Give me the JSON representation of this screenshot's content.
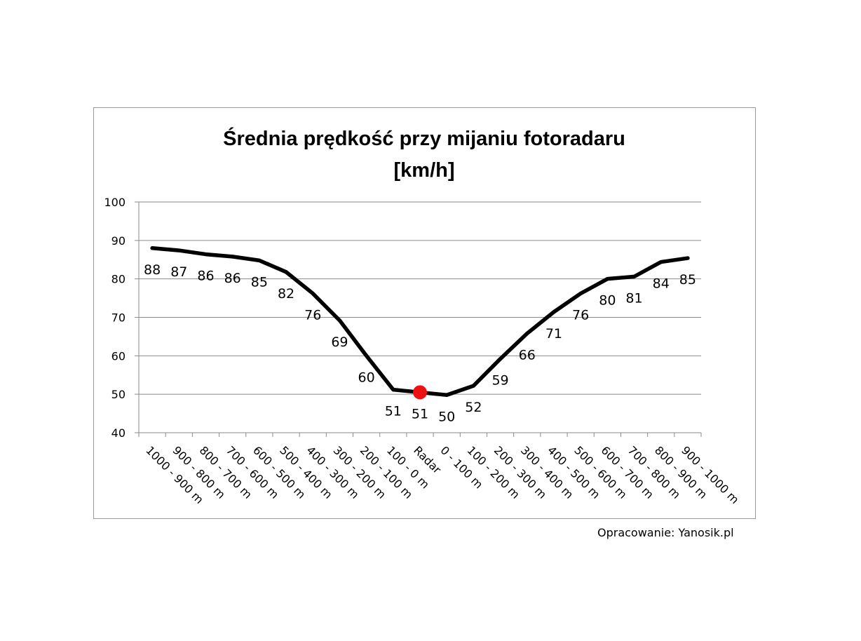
{
  "chart_data": {
    "type": "line",
    "title": "Średnia prędkość przy mijaniu fotoradaru",
    "subtitle": "[km/h]",
    "categories": [
      "1000 - 900 m",
      "900 - 800 m",
      "800 - 700 m",
      "700 - 600 m",
      "600 - 500 m",
      "500 - 400 m",
      "400 - 300 m",
      "300 - 200 m",
      "200 - 100 m",
      "100 - 0 m",
      "Radar",
      "0 - 100 m",
      "100 - 200 m",
      "200 - 300 m",
      "300 - 400 m",
      "400 - 500 m",
      "500 - 600 m",
      "600 - 700 m",
      "700 - 800 m",
      "800 - 900 m",
      "900 - 1000 m"
    ],
    "values": [
      88,
      87.4,
      86.4,
      85.8,
      84.8,
      81.8,
      76.2,
      69.2,
      60,
      51.2,
      50.5,
      49.8,
      52.2,
      59.2,
      65.8,
      71.4,
      76.2,
      80,
      80.6,
      84.4,
      85.4
    ],
    "data_labels": [
      "88",
      "87",
      "86",
      "86",
      "85",
      "82",
      "76",
      "69",
      "60",
      "51",
      "51",
      "50",
      "52",
      "59",
      "66",
      "71",
      "76",
      "80",
      "81",
      "84",
      "85"
    ],
    "highlight_index": 10,
    "highlight_color": "#ee1111",
    "line_color": "#000000",
    "ylim": [
      40,
      100
    ],
    "yticks": [
      40,
      50,
      60,
      70,
      80,
      90,
      100
    ],
    "grid": true,
    "legend": "none"
  },
  "credit": "Opracowanie: Yanosik.pl"
}
